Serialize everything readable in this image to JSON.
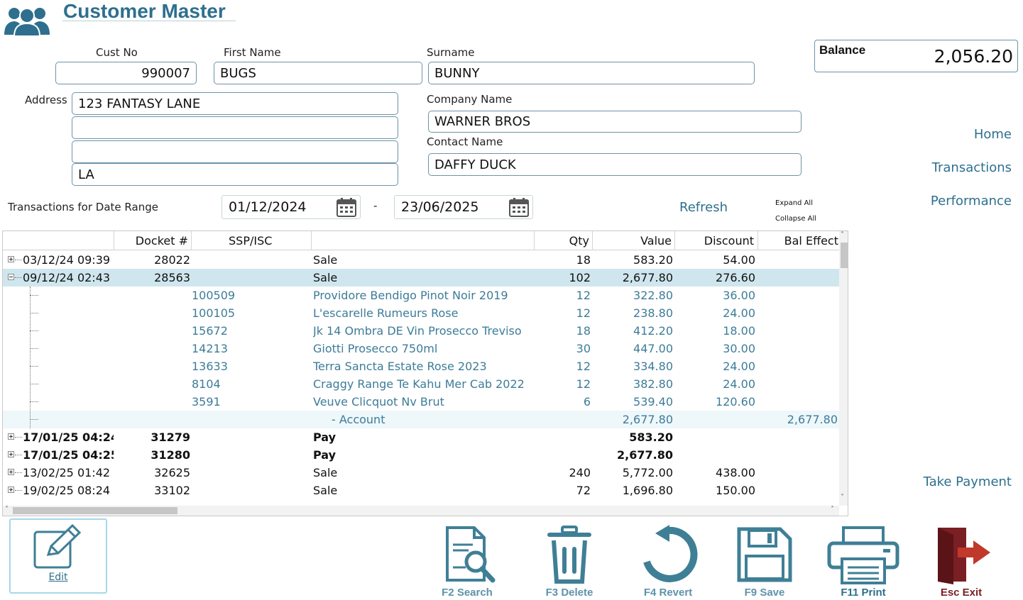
{
  "header": {
    "title": "Customer Master",
    "icon": "users-icon"
  },
  "fields": {
    "cust_no_label": "Cust No",
    "cust_no": "990007",
    "first_name_label": "First Name",
    "first_name": "BUGS",
    "surname_label": "Surname",
    "surname": "BUNNY",
    "address_label": "Address",
    "address1": "123 FANTASY LANE",
    "address2": "",
    "address3": "",
    "address4": "LA",
    "company_label": "Company Name",
    "company": "WARNER BROS",
    "contact_label": "Contact Name",
    "contact": "DAFFY DUCK"
  },
  "balance": {
    "label": "Balance",
    "value": "2,056.20"
  },
  "nav": {
    "home": "Home",
    "transactions": "Transactions",
    "performance": "Performance",
    "take_payment": "Take Payment"
  },
  "date_range": {
    "label": "Transactions for Date Range",
    "from": "01/12/2024",
    "separator": "-",
    "to": "23/06/2025",
    "refresh": "Refresh",
    "expand_all": "Expand All",
    "collapse_all": "Collapse All"
  },
  "grid": {
    "columns": [
      "Docket #",
      "SSP/ISC",
      "",
      "Qty",
      "Value",
      "Discount",
      "Bal Effect"
    ],
    "rows": [
      {
        "kind": "parent",
        "date": "03/12/24 09:39 ...",
        "docket": "28022",
        "ssp": "",
        "desc": "Sale",
        "qty": "18",
        "value": "583.20",
        "discount": "54.00",
        "bal": ""
      },
      {
        "kind": "parent-open",
        "date": "09/12/24 02:43 ...",
        "docket": "28563",
        "ssp": "",
        "desc": "Sale",
        "qty": "102",
        "value": "2,677.80",
        "discount": "276.60",
        "bal": ""
      },
      {
        "kind": "child",
        "date": "",
        "docket": "",
        "ssp": "100509",
        "desc": "Providore Bendigo Pinot Noir 2019",
        "qty": "12",
        "value": "322.80",
        "discount": "36.00",
        "bal": ""
      },
      {
        "kind": "child",
        "date": "",
        "docket": "",
        "ssp": "100105",
        "desc": "L'escarelle Rumeurs Rose",
        "qty": "12",
        "value": "238.80",
        "discount": "24.00",
        "bal": ""
      },
      {
        "kind": "child",
        "date": "",
        "docket": "",
        "ssp": "15672",
        "desc": "Jk 14 Ombra DE Vin Prosecco Treviso",
        "qty": "18",
        "value": "412.20",
        "discount": "18.00",
        "bal": ""
      },
      {
        "kind": "child",
        "date": "",
        "docket": "",
        "ssp": "14213",
        "desc": "Giotti Prosecco 750ml",
        "qty": "30",
        "value": "447.00",
        "discount": "30.00",
        "bal": ""
      },
      {
        "kind": "child",
        "date": "",
        "docket": "",
        "ssp": "13633",
        "desc": "Terra Sancta Estate Rose 2023",
        "qty": "12",
        "value": "334.80",
        "discount": "24.00",
        "bal": ""
      },
      {
        "kind": "child",
        "date": "",
        "docket": "",
        "ssp": "8104",
        "desc": "Craggy Range Te Kahu Mer Cab 2022",
        "qty": "12",
        "value": "382.80",
        "discount": "24.00",
        "bal": ""
      },
      {
        "kind": "child",
        "date": "",
        "docket": "",
        "ssp": "3591",
        "desc": "Veuve Clicquot Nv Brut",
        "qty": "6",
        "value": "539.40",
        "discount": "120.60",
        "bal": ""
      },
      {
        "kind": "account",
        "date": "",
        "docket": "",
        "ssp": "",
        "desc": "-  Account",
        "qty": "",
        "value": "2,677.80",
        "discount": "",
        "bal": "2,677.80"
      },
      {
        "kind": "parent-bold",
        "date": "17/01/25 04:24...",
        "docket": "31279",
        "ssp": "",
        "desc": "Pay",
        "qty": "",
        "value": "583.20",
        "discount": "",
        "bal": ""
      },
      {
        "kind": "parent-bold",
        "date": "17/01/25 04:25...",
        "docket": "31280",
        "ssp": "",
        "desc": "Pay",
        "qty": "",
        "value": "2,677.80",
        "discount": "",
        "bal": ""
      },
      {
        "kind": "parent",
        "date": "13/02/25 01:42 ...",
        "docket": "32625",
        "ssp": "",
        "desc": "Sale",
        "qty": "240",
        "value": "5,772.00",
        "discount": "438.00",
        "bal": ""
      },
      {
        "kind": "parent",
        "date": "19/02/25 08:24 ...",
        "docket": "33102",
        "ssp": "",
        "desc": "Sale",
        "qty": "72",
        "value": "1,696.80",
        "discount": "150.00",
        "bal": ""
      }
    ]
  },
  "toolbar": {
    "edit": "Edit",
    "search": "F2 Search",
    "delete": "F3 Delete",
    "revert": "F4 Revert",
    "save": "F9 Save",
    "print": "F11 Print",
    "exit": "Esc Exit"
  },
  "colors": {
    "accent": "#2e6f8e",
    "icon_teal": "#3f7f96",
    "exit_red": "#7a1f24",
    "selected_row": "#cfe6ee"
  }
}
